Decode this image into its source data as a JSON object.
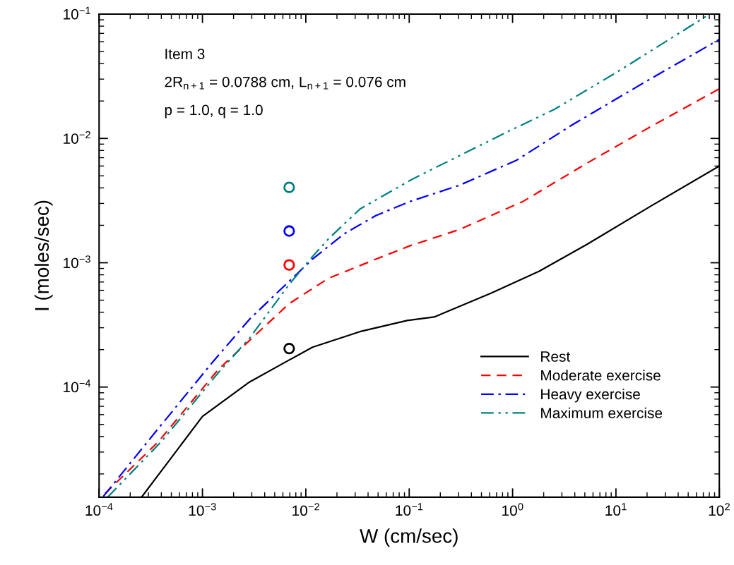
{
  "chart_data": {
    "type": "line",
    "xlabel": "W (cm/sec)",
    "ylabel": "I (moles/sec)",
    "log": "xy",
    "xlim": [
      0.0001,
      100
    ],
    "ylim": [
      1.3e-05,
      0.1
    ],
    "xticks": [
      {
        "value": 0.0001,
        "label": "10$^{−4}$"
      },
      {
        "value": 0.001,
        "label": "10$^{−3}$"
      },
      {
        "value": 0.01,
        "label": "10$^{−2}$"
      },
      {
        "value": 0.1,
        "label": "10$^{−1}$"
      },
      {
        "value": 1,
        "label": "10$^{0}$"
      },
      {
        "value": 10,
        "label": "10$^{1}$"
      },
      {
        "value": 100,
        "label": "10$^{2}$"
      }
    ],
    "yticks": [
      {
        "value": 0.0001,
        "label": "10$^{−4}$"
      },
      {
        "value": 0.001,
        "label": "10$^{−3}$"
      },
      {
        "value": 0.01,
        "label": "10$^{−2}$"
      },
      {
        "value": 0.1,
        "label": "10$^{−1}$"
      }
    ],
    "grid": false,
    "legend": "bottom right",
    "annotations": [
      "Item 3",
      "2R$_{n+1}$ = 0.0788 cm, L$_{n+1}$ = 0.076 cm",
      "p = 1.0, q = 1.0"
    ],
    "series": [
      {
        "name": "Rest",
        "color": "#000000",
        "line_style": "solid",
        "marker": "none",
        "x": [
          0.000261,
          0.001,
          0.00286,
          0.0069,
          0.0116,
          0.0333,
          0.0955,
          0.174,
          0.622,
          1.81,
          5.2,
          21.5,
          100
        ],
        "values": [
          1.32e-05,
          5.8e-05,
          0.00011,
          0.000165,
          0.000209,
          0.000279,
          0.000343,
          0.000366,
          0.00057,
          0.000855,
          0.0014,
          0.00284,
          0.006
        ]
      },
      {
        "name": "Moderate exercise",
        "color": "#ff0000",
        "line_style": "dashed",
        "marker": "none",
        "x": [
          0.000114,
          0.000375,
          0.00143,
          0.0069,
          0.0166,
          0.0478,
          0.102,
          0.306,
          1.26,
          5.2,
          21.5,
          100
        ],
        "values": [
          1.39e-05,
          3.64e-05,
          0.000139,
          0.000469,
          0.00075,
          0.00107,
          0.00137,
          0.00185,
          0.00311,
          0.0063,
          0.0124,
          0.0251
        ]
      },
      {
        "name": "Heavy exercise",
        "color": "#0000ff",
        "line_style": "dash-dot",
        "marker": "none",
        "x": [
          0.00011,
          0.000347,
          0.00124,
          0.00286,
          0.0069,
          0.0116,
          0.0235,
          0.0478,
          0.102,
          0.306,
          1.1,
          3.68,
          21.5,
          100
        ],
        "values": [
          1.32e-05,
          4.3e-05,
          0.000157,
          0.000352,
          0.00071,
          0.00107,
          0.00171,
          0.0024,
          0.00311,
          0.0042,
          0.0067,
          0.0127,
          0.0301,
          0.0625
        ]
      },
      {
        "name": "Maximum exercise",
        "color": "#008080",
        "line_style": "dash-dot-dot",
        "marker": "none",
        "x": [
          0.000121,
          0.0004,
          0.00143,
          0.00286,
          0.0069,
          0.0116,
          0.0166,
          0.0333,
          0.102,
          0.217,
          0.89,
          2.56,
          10.6,
          80.5
        ],
        "values": [
          1.3e-05,
          3.64e-05,
          0.000131,
          0.000248,
          0.00067,
          0.00112,
          0.00156,
          0.0027,
          0.0046,
          0.0063,
          0.0113,
          0.0172,
          0.0348,
          0.1
        ]
      },
      {
        "type": "scatter",
        "marker": "circle",
        "colors": [
          "#008080",
          "#0000ff",
          "#ff0000",
          "#000000"
        ],
        "x": [
          0.0069,
          0.0069,
          0.0069,
          0.0069
        ],
        "values": [
          0.00404,
          0.0018,
          0.00096,
          0.000204
        ]
      }
    ]
  }
}
